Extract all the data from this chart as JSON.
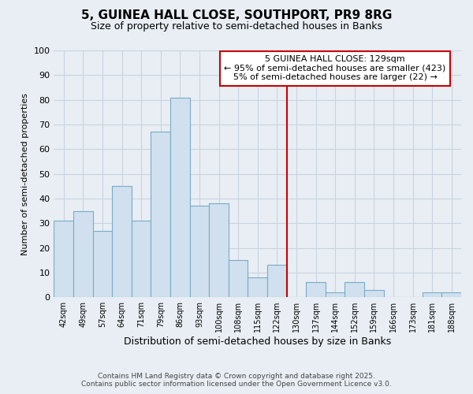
{
  "title": "5, GUINEA HALL CLOSE, SOUTHPORT, PR9 8RG",
  "subtitle": "Size of property relative to semi-detached houses in Banks",
  "xlabel": "Distribution of semi-detached houses by size in Banks",
  "ylabel": "Number of semi-detached properties",
  "bar_labels": [
    "42sqm",
    "49sqm",
    "57sqm",
    "64sqm",
    "71sqm",
    "79sqm",
    "86sqm",
    "93sqm",
    "100sqm",
    "108sqm",
    "115sqm",
    "122sqm",
    "130sqm",
    "137sqm",
    "144sqm",
    "152sqm",
    "159sqm",
    "166sqm",
    "173sqm",
    "181sqm",
    "188sqm"
  ],
  "bar_values": [
    31,
    35,
    27,
    45,
    31,
    67,
    81,
    37,
    38,
    15,
    8,
    13,
    0,
    6,
    2,
    6,
    3,
    0,
    0,
    2,
    2
  ],
  "bar_color": "#d0e0ee",
  "bar_edge_color": "#7aaac8",
  "vline_color": "#cc0000",
  "annotation_text": "5 GUINEA HALL CLOSE: 129sqm\n← 95% of semi-detached houses are smaller (423)\n5% of semi-detached houses are larger (22) →",
  "annotation_box_color": "#ffffff",
  "annotation_box_edge": "#cc0000",
  "ylim": [
    0,
    100
  ],
  "footer1": "Contains HM Land Registry data © Crown copyright and database right 2025.",
  "footer2": "Contains public sector information licensed under the Open Government Licence v3.0.",
  "background_color": "#e8eef4",
  "grid_color": "#c8d4e0"
}
